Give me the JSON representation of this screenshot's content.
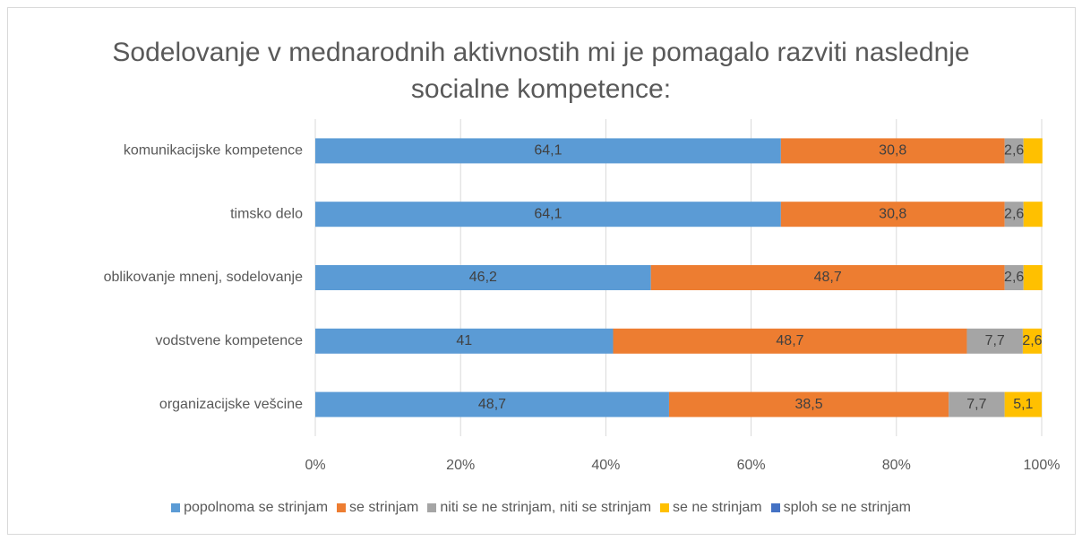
{
  "chart_data": {
    "type": "stacked-bar-horizontal",
    "title": "Sodelovanje v mednarodnih aktivnostih mi je pomagalo razviti naslednje socialne kompetence:",
    "categories": [
      "komunikacijske kompetence",
      "timsko delo",
      "oblikovanje mnenj, sodelovanje",
      "vodstvene kompetence",
      "organizacijske vešcine"
    ],
    "series": [
      {
        "name": "popolnoma se strinjam",
        "color": "#5b9bd5",
        "values": [
          64.1,
          64.1,
          46.2,
          41,
          48.7
        ],
        "value_labels": [
          "64,1",
          "64,1",
          "46,2",
          "41",
          "48,7"
        ]
      },
      {
        "name": "se strinjam",
        "color": "#ed7d31",
        "values": [
          30.8,
          30.8,
          48.7,
          48.7,
          38.5
        ],
        "value_labels": [
          "30,8",
          "30,8",
          "48,7",
          "48,7",
          "38,5"
        ]
      },
      {
        "name": "niti se ne strinjam, niti se strinjam",
        "color": "#a5a5a5",
        "values": [
          2.6,
          2.6,
          2.6,
          7.7,
          7.7
        ],
        "value_labels": [
          "2,6",
          "2,6",
          "2,6",
          "7,7",
          "7,7"
        ]
      },
      {
        "name": "se ne strinjam",
        "color": "#ffc000",
        "values": [
          2.6,
          2.6,
          2.6,
          2.6,
          5.1
        ],
        "value_labels": [
          null,
          null,
          null,
          "2,6",
          "5,1"
        ]
      },
      {
        "name": "sploh se ne strinjam",
        "color": "#4472c4",
        "values": [
          0,
          0,
          0,
          0,
          0
        ],
        "value_labels": [
          null,
          null,
          null,
          null,
          null
        ]
      }
    ],
    "xlim": [
      0,
      100
    ],
    "xticks": [
      {
        "value": 0,
        "label": "0%"
      },
      {
        "value": 20,
        "label": "20%"
      },
      {
        "value": 40,
        "label": "40%"
      },
      {
        "value": 60,
        "label": "60%"
      },
      {
        "value": 80,
        "label": "80%"
      },
      {
        "value": 100,
        "label": "100%"
      }
    ],
    "grid": true,
    "legend": "bottom"
  }
}
